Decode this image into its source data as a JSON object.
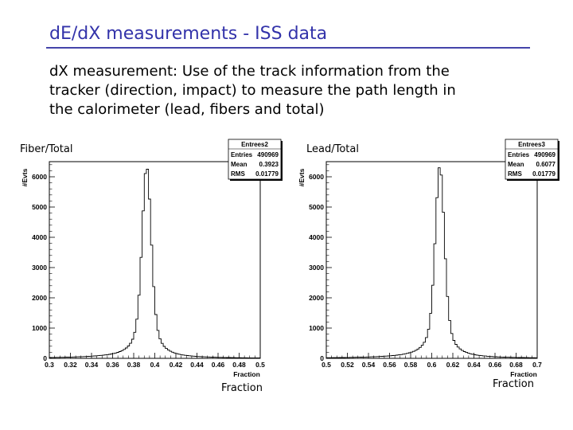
{
  "slide": {
    "title": "dE/dX  measurements - ISS data",
    "body_lines": [
      "dX measurement: Use of the track information from the",
      "tracker  (direction, impact) to measure the path length in",
      "the calorimeter (lead, fibers and total)"
    ]
  },
  "colors": {
    "title": "#3333aa",
    "rule": "#4444aa",
    "line": "#000000"
  },
  "chart_data": [
    {
      "type": "histogram",
      "label": "Fiber/Total",
      "ylabel": "#Evts",
      "xlabel_small": "Fraction",
      "xlabel": "Fraction",
      "xlim": [
        0.3,
        0.5
      ],
      "ylim": [
        0,
        6500
      ],
      "xticks": [
        "0.3",
        "0.32",
        "0.34",
        "0.36",
        "0.38",
        "0.4",
        "0.42",
        "0.44",
        "0.46",
        "0.48",
        "0.5"
      ],
      "yticks": [
        "0",
        "1000",
        "2000",
        "3000",
        "4000",
        "5000",
        "6000"
      ],
      "stats": {
        "title": "Entrees2",
        "entries_label": "Entries",
        "entries": "490969",
        "mean_label": "Mean",
        "mean": "0.3923",
        "rms_label": "RMS",
        "rms": "0.01779"
      },
      "peak": 0.3923,
      "peak_height": 6300
    },
    {
      "type": "histogram",
      "label": "Lead/Total",
      "ylabel": "#Evts",
      "xlabel_small": "Fraction",
      "xlabel": "Fraction",
      "xlim": [
        0.5,
        0.7
      ],
      "ylim": [
        0,
        6500
      ],
      "xticks": [
        "0.5",
        "0.52",
        "0.54",
        "0.56",
        "0.58",
        "0.6",
        "0.62",
        "0.64",
        "0.66",
        "0.68",
        "0.7"
      ],
      "yticks": [
        "0",
        "1000",
        "2000",
        "3000",
        "4000",
        "5000",
        "6000"
      ],
      "stats": {
        "title": "Entrees3",
        "entries_label": "Entries",
        "entries": "490969",
        "mean_label": "Mean",
        "mean": "0.6077",
        "rms_label": "RMS",
        "rms": "0.01779"
      },
      "peak": 0.6077,
      "peak_height": 6300
    }
  ]
}
